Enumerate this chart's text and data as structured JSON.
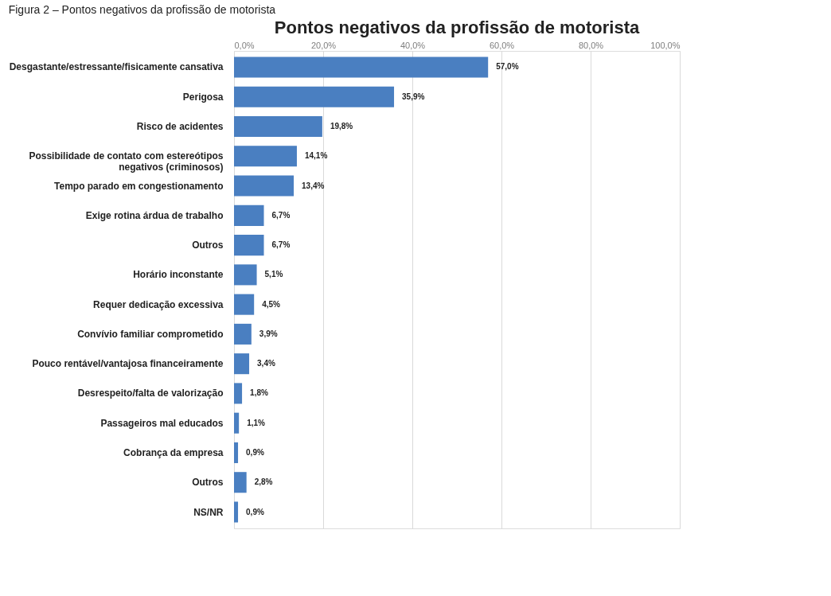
{
  "chart_data": {
    "type": "bar",
    "orientation": "horizontal",
    "title": "Pontos negativos da profissão de motorista",
    "annotations": [
      "Figura 2 – Pontos negativos da profissão de motorista"
    ],
    "categories": [
      "Desgastante/estressante/fisicamente cansativa",
      "Perigosa",
      "Risco de acidentes",
      "Possibilidade de contato com estereótipos negativos (criminosos)",
      "Tempo parado em congestionamento",
      "Exige rotina árdua de trabalho",
      "Outros",
      "Horário inconstante",
      "Requer dedicação excessiva",
      "Convívio familiar comprometido",
      "Pouco rentável/vantajosa financeiramente",
      "Desrespeito/falta de valorização",
      "Passageiros mal educados",
      "Cobrança da empresa",
      "Outros",
      "NS/NR"
    ],
    "values": [
      57.0,
      35.9,
      19.8,
      14.1,
      13.4,
      6.7,
      6.7,
      5.1,
      4.5,
      3.9,
      3.4,
      1.8,
      1.1,
      0.9,
      2.8,
      0.9
    ],
    "value_labels": [
      "57,0%",
      "35,9%",
      "19,8%",
      "14,1%",
      "13,4%",
      "6,7%",
      "6,7%",
      "5,1%",
      "4,5%",
      "3,9%",
      "3,4%",
      "1,8%",
      "1,1%",
      "0,9%",
      "2,8%",
      "0,9%"
    ],
    "color": "#4a7fc1",
    "xlim": [
      0,
      100
    ],
    "xticks": [
      {
        "value": 0,
        "label": "0,0%"
      },
      {
        "value": 20,
        "label": "20,0%"
      },
      {
        "value": 40,
        "label": "40,0%"
      },
      {
        "value": 60,
        "label": "60,0%"
      },
      {
        "value": 80,
        "label": "80,0%"
      },
      {
        "value": 100,
        "label": "100,0%"
      }
    ],
    "grid": "x"
  }
}
